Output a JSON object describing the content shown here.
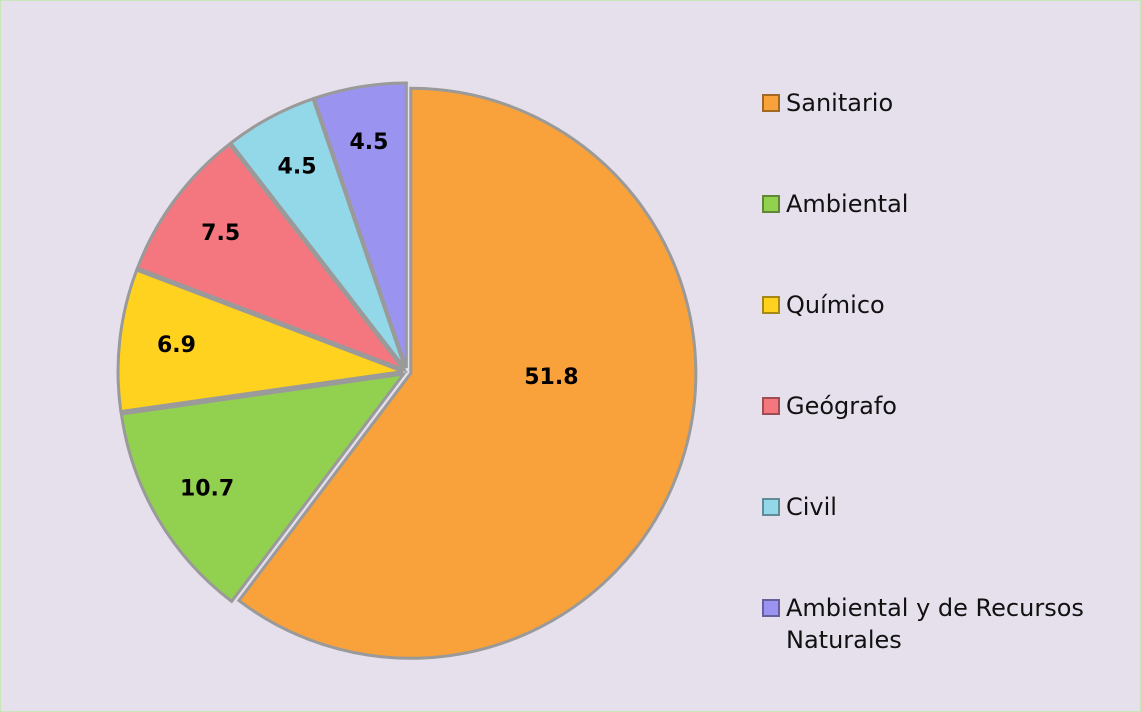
{
  "chart_data": {
    "type": "pie",
    "categories": [
      "Sanitario",
      "Ambiental",
      "Químico",
      "Geógrafo",
      "Civil",
      "Ambiental y de Recursos Naturales"
    ],
    "values": [
      51.8,
      10.7,
      6.9,
      7.5,
      4.5,
      4.5
    ],
    "colors": [
      "#f9a13a",
      "#92d050",
      "#ffd21f",
      "#f4777f",
      "#93d8e8",
      "#9b93f0"
    ],
    "legend": "right"
  }
}
